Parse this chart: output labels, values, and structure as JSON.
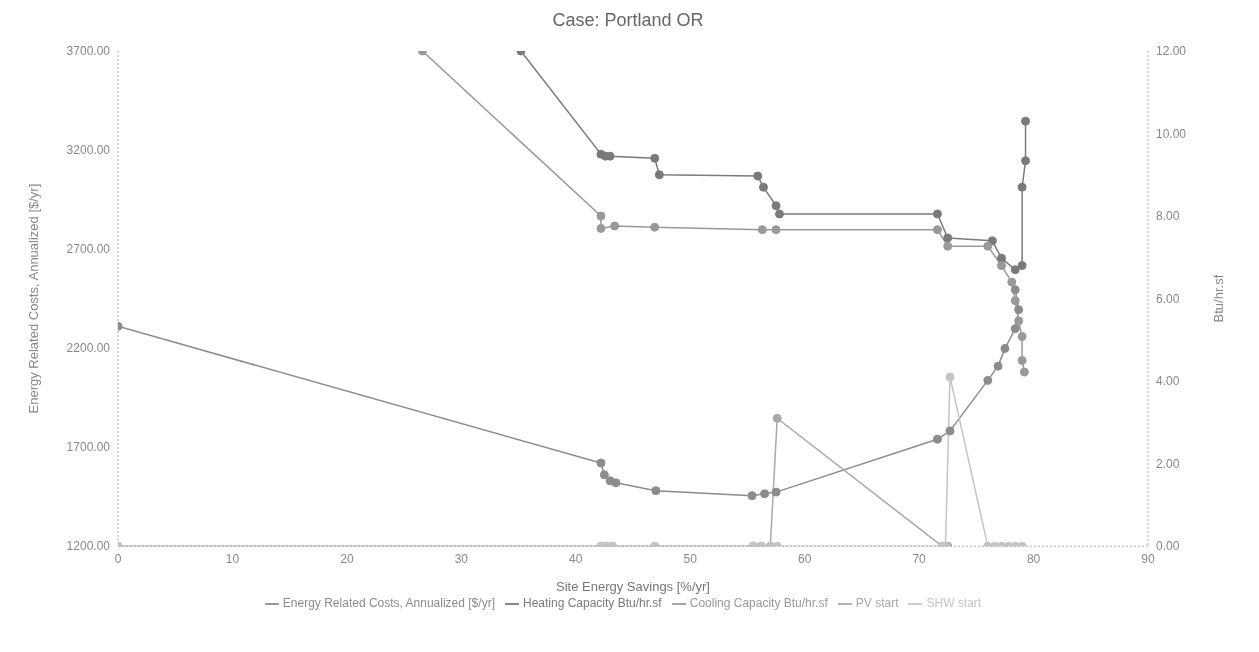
{
  "chart_data": {
    "type": "line",
    "title": "Case: Portland OR",
    "xlabel": "Site Energy Savings [%/yr]",
    "ylabel": "Energy Related Costs, Annualized [$/yr]",
    "y2label": "Btu/hr.sf",
    "xlim": [
      0,
      90
    ],
    "xticks": [
      0,
      10,
      20,
      30,
      40,
      50,
      60,
      70,
      80,
      90
    ],
    "ylim": [
      1200,
      3700
    ],
    "yticks": [
      {
        "value": 1200,
        "label": "1200.00"
      },
      {
        "value": 1700,
        "label": "1700.00"
      },
      {
        "value": 2200,
        "label": "2200.00"
      },
      {
        "value": 2700,
        "label": "2700.00"
      },
      {
        "value": 3200,
        "label": "3200.00"
      },
      {
        "value": 3700,
        "label": "3700.00"
      }
    ],
    "y2lim": [
      0,
      12
    ],
    "y2ticks": [
      {
        "value": 0,
        "label": "0.00"
      },
      {
        "value": 2,
        "label": "2.00"
      },
      {
        "value": 4,
        "label": "4.00"
      },
      {
        "value": 6,
        "label": "6.00"
      },
      {
        "value": 8,
        "label": "8.00"
      },
      {
        "value": 10,
        "label": "10.00"
      },
      {
        "value": 12,
        "label": "12.00"
      }
    ],
    "grid": false,
    "legend": "bottom",
    "marker": "circle",
    "line_style": "solid",
    "series": [
      {
        "name": "Energy Related Costs, Annualized [$/yr]",
        "color": "#8c8c8c",
        "x": [
          0,
          42.2,
          42.5,
          43,
          43.5,
          47,
          55.4,
          56.5,
          57.5,
          71.6,
          72.7,
          76,
          76.9,
          77.5,
          78.4,
          78.7,
          78.4
        ],
        "values": [
          2310,
          1620,
          1560,
          1530,
          1520,
          1480,
          1455,
          1465,
          1473,
          1740,
          1782,
          2037,
          2109,
          2198,
          2298,
          2394,
          2495
        ]
      },
      {
        "name": "Heating Capacity Btu/hr.sf",
        "color": "#7a7a7a",
        "axis": "y2",
        "x": [
          35.2,
          42.2,
          42.6,
          43,
          46.9,
          47.3,
          55.9,
          56.4,
          57.5,
          57.8,
          71.6,
          72.5,
          76.4,
          77.2,
          78.4,
          79,
          79,
          79.3,
          79.3
        ],
        "values": [
          12,
          9.5,
          9.45,
          9.45,
          9.4,
          9,
          8.97,
          8.7,
          8.25,
          8.05,
          8.05,
          7.47,
          7.4,
          6.98,
          6.7,
          6.8,
          8.7,
          9.34,
          10.3
        ]
      },
      {
        "name": "Cooling Capacity Btu/hr.sf",
        "color": "#999999",
        "axis": "y2",
        "x": [
          26.6,
          42.2,
          42.2,
          43.4,
          46.9,
          56.3,
          57.5,
          71.6,
          72.5,
          76,
          77.2,
          78.1,
          78.4,
          78.7,
          79,
          79,
          79.2
        ],
        "values": [
          12,
          8,
          7.7,
          7.76,
          7.73,
          7.67,
          7.67,
          7.67,
          7.27,
          7.27,
          6.8,
          6.4,
          5.95,
          5.46,
          5.08,
          4.5,
          4.22
        ]
      },
      {
        "name": "PV start",
        "color": "#a8a8a8",
        "axis": "y2",
        "x": [
          0,
          42.2,
          42.7,
          43.2,
          46.9,
          55.5,
          56.2,
          57,
          57.6,
          72,
          72.5
        ],
        "values": [
          0,
          0,
          0,
          0,
          0,
          0,
          0,
          0,
          3.1,
          0,
          0
        ]
      },
      {
        "name": "SHW start",
        "color": "#c4c4c4",
        "axis": "y2",
        "x": [
          0,
          42.2,
          42.7,
          43.2,
          46.9,
          55.5,
          56.2,
          57,
          57.6,
          72,
          72.3,
          72.7,
          76,
          76.6,
          77.2,
          77.8,
          78.4,
          79
        ],
        "values": [
          0,
          0,
          0,
          0,
          0,
          0,
          0,
          0,
          0,
          0,
          0,
          4.1,
          0,
          0,
          0,
          0,
          0,
          0
        ]
      }
    ]
  }
}
